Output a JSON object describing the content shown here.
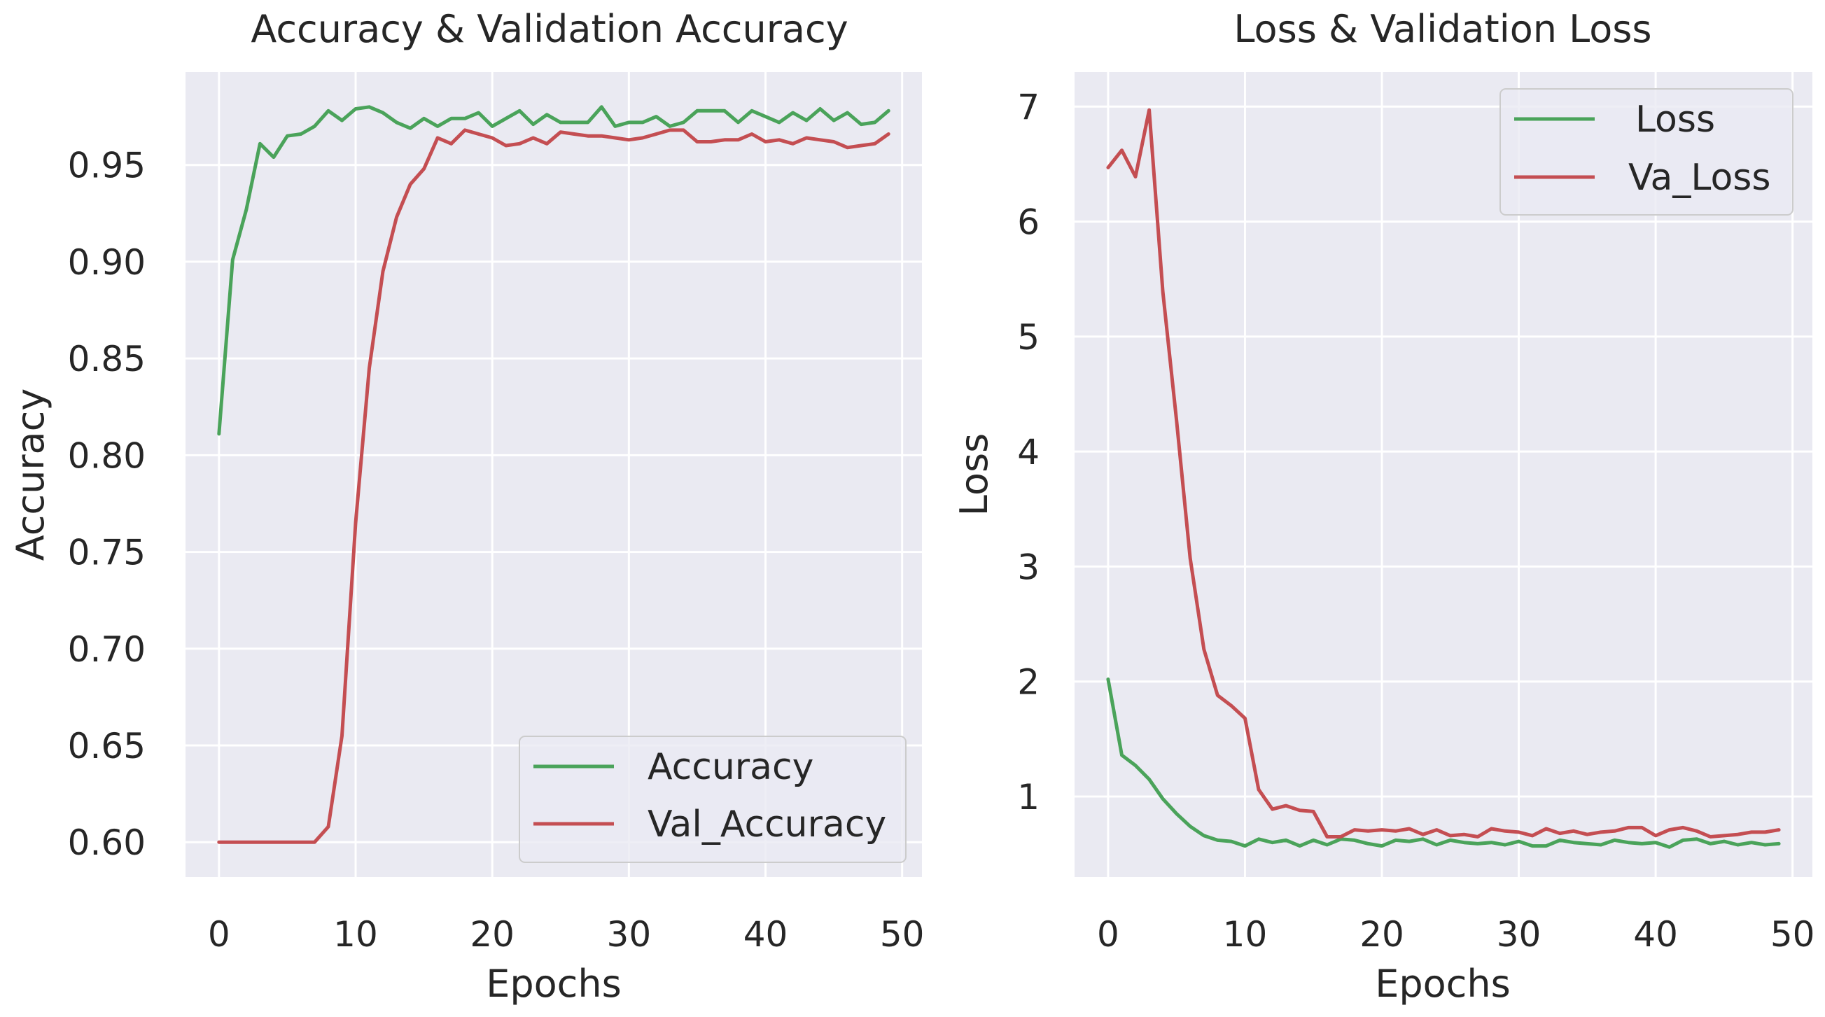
{
  "chart_data": [
    {
      "type": "line",
      "title": "Accuracy & Validation Accuracy",
      "xlabel": "Epochs",
      "ylabel": "Accuracy",
      "xlim": [
        -2.45,
        51.45
      ],
      "ylim": [
        0.582,
        0.998
      ],
      "xticks": [
        0,
        10,
        20,
        30,
        40,
        50
      ],
      "yticks": [
        0.6,
        0.65,
        0.7,
        0.75,
        0.8,
        0.85,
        0.9,
        0.95
      ],
      "xtick_labels": [
        "0",
        "10",
        "20",
        "30",
        "40",
        "50"
      ],
      "ytick_labels": [
        "0.60",
        "0.65",
        "0.70",
        "0.75",
        "0.80",
        "0.85",
        "0.90",
        "0.95"
      ],
      "legend_position": "lower-right",
      "grid": true,
      "x": [
        0,
        1,
        2,
        3,
        4,
        5,
        6,
        7,
        8,
        9,
        10,
        11,
        12,
        13,
        14,
        15,
        16,
        17,
        18,
        19,
        20,
        21,
        22,
        23,
        24,
        25,
        26,
        27,
        28,
        29,
        30,
        31,
        32,
        33,
        34,
        35,
        36,
        37,
        38,
        39,
        40,
        41,
        42,
        43,
        44,
        45,
        46,
        47,
        48,
        49
      ],
      "series": [
        {
          "name": "Accuracy",
          "color": "#4aa35a",
          "values": [
            0.811,
            0.901,
            0.927,
            0.961,
            0.954,
            0.965,
            0.966,
            0.97,
            0.978,
            0.973,
            0.979,
            0.98,
            0.977,
            0.972,
            0.969,
            0.974,
            0.97,
            0.974,
            0.974,
            0.977,
            0.97,
            0.974,
            0.978,
            0.971,
            0.976,
            0.972,
            0.972,
            0.972,
            0.98,
            0.97,
            0.972,
            0.972,
            0.975,
            0.97,
            0.972,
            0.978,
            0.978,
            0.978,
            0.972,
            0.978,
            0.975,
            0.972,
            0.977,
            0.973,
            0.979,
            0.973,
            0.977,
            0.971,
            0.972,
            0.978
          ]
        },
        {
          "name": "Val_Accuracy",
          "color": "#c44e52",
          "values": [
            0.6,
            0.6,
            0.6,
            0.6,
            0.6,
            0.6,
            0.6,
            0.6,
            0.608,
            0.655,
            0.765,
            0.845,
            0.895,
            0.923,
            0.94,
            0.948,
            0.964,
            0.961,
            0.968,
            0.966,
            0.964,
            0.96,
            0.961,
            0.964,
            0.961,
            0.967,
            0.966,
            0.965,
            0.965,
            0.964,
            0.963,
            0.964,
            0.966,
            0.968,
            0.968,
            0.962,
            0.962,
            0.963,
            0.963,
            0.966,
            0.962,
            0.963,
            0.961,
            0.964,
            0.963,
            0.962,
            0.959,
            0.96,
            0.961,
            0.966
          ]
        }
      ]
    },
    {
      "type": "line",
      "title": "Loss & Validation Loss",
      "xlabel": "Epochs",
      "ylabel": "Loss",
      "xlim": [
        -2.45,
        51.45
      ],
      "ylim": [
        0.3,
        7.3
      ],
      "xticks": [
        0,
        10,
        20,
        30,
        40,
        50
      ],
      "yticks": [
        1,
        2,
        3,
        4,
        5,
        6,
        7
      ],
      "xtick_labels": [
        "0",
        "10",
        "20",
        "30",
        "40",
        "50"
      ],
      "ytick_labels": [
        "1",
        "2",
        "3",
        "4",
        "5",
        "6",
        "7"
      ],
      "legend_position": "upper-right",
      "grid": true,
      "x": [
        0,
        1,
        2,
        3,
        4,
        5,
        6,
        7,
        8,
        9,
        10,
        11,
        12,
        13,
        14,
        15,
        16,
        17,
        18,
        19,
        20,
        21,
        22,
        23,
        24,
        25,
        26,
        27,
        28,
        29,
        30,
        31,
        32,
        33,
        34,
        35,
        36,
        37,
        38,
        39,
        40,
        41,
        42,
        43,
        44,
        45,
        46,
        47,
        48,
        49
      ],
      "series": [
        {
          "name": "Loss",
          "color": "#4aa35a",
          "values": [
            2.02,
            1.36,
            1.27,
            1.15,
            0.98,
            0.85,
            0.74,
            0.66,
            0.62,
            0.61,
            0.57,
            0.63,
            0.6,
            0.62,
            0.57,
            0.62,
            0.58,
            0.63,
            0.62,
            0.59,
            0.57,
            0.62,
            0.61,
            0.63,
            0.58,
            0.62,
            0.6,
            0.59,
            0.6,
            0.58,
            0.61,
            0.57,
            0.57,
            0.62,
            0.6,
            0.59,
            0.58,
            0.62,
            0.6,
            0.59,
            0.6,
            0.56,
            0.62,
            0.63,
            0.59,
            0.61,
            0.58,
            0.6,
            0.58,
            0.59
          ]
        },
        {
          "name": "Va_Loss",
          "color": "#c44e52",
          "values": [
            6.47,
            6.62,
            6.39,
            6.97,
            5.39,
            4.27,
            3.07,
            2.28,
            1.88,
            1.79,
            1.68,
            1.06,
            0.89,
            0.92,
            0.88,
            0.87,
            0.65,
            0.65,
            0.71,
            0.7,
            0.71,
            0.7,
            0.72,
            0.67,
            0.71,
            0.66,
            0.67,
            0.65,
            0.72,
            0.7,
            0.69,
            0.66,
            0.72,
            0.68,
            0.7,
            0.67,
            0.69,
            0.7,
            0.73,
            0.73,
            0.66,
            0.71,
            0.73,
            0.7,
            0.65,
            0.66,
            0.67,
            0.69,
            0.69,
            0.71
          ]
        }
      ]
    }
  ]
}
